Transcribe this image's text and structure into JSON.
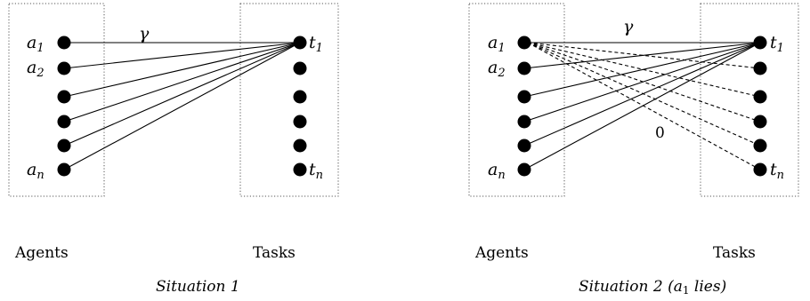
{
  "panels": [
    {
      "agents_label": "Agents",
      "tasks_label": "Tasks",
      "caption": "Situation 1",
      "agent_labels": {
        "first": "a",
        "first_sub": "1",
        "second": "a",
        "second_sub": "2",
        "last": "a",
        "last_sub": "n"
      },
      "task_labels": {
        "first": "t",
        "first_sub": "1",
        "last": "t",
        "last_sub": "n"
      },
      "edge_label": "γ",
      "dashed_label": ""
    },
    {
      "agents_label": "Agents",
      "tasks_label": "Tasks",
      "caption_main": "Situation 2 (",
      "caption_var": "a",
      "caption_sub": "1",
      "caption_tail": " lies)",
      "agent_labels": {
        "first": "a",
        "first_sub": "1",
        "second": "a",
        "second_sub": "2",
        "last": "a",
        "last_sub": "n"
      },
      "task_labels": {
        "first": "t",
        "first_sub": "1",
        "last": "t",
        "last_sub": "n"
      },
      "edge_label": "γ",
      "dashed_label": "0"
    }
  ]
}
